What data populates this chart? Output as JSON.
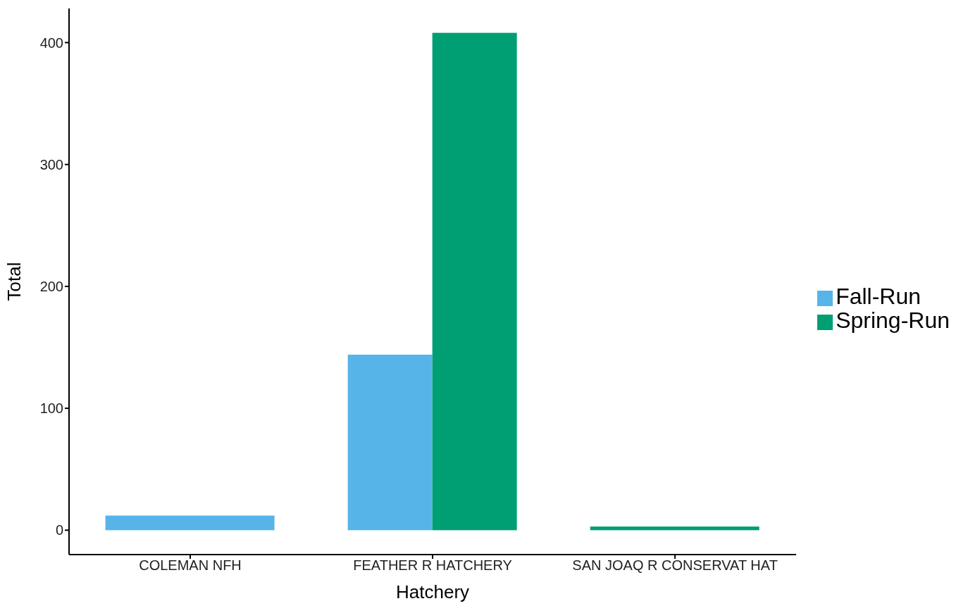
{
  "chart_data": {
    "type": "bar",
    "xlabel": "Hatchery",
    "ylabel": "Total",
    "categories": [
      "COLEMAN NFH",
      "FEATHER R HATCHERY",
      "SAN JOAQ R CONSERVAT HAT"
    ],
    "series": [
      {
        "name": "Fall-Run",
        "color": "#56b4e9",
        "values": [
          12,
          144,
          null
        ]
      },
      {
        "name": "Spring-Run",
        "color": "#009e73",
        "values": [
          null,
          408,
          3
        ]
      }
    ],
    "ylim": [
      -20,
      428
    ],
    "yticks": [
      0,
      100,
      200,
      300,
      400
    ],
    "grid": false,
    "legend": "right"
  }
}
